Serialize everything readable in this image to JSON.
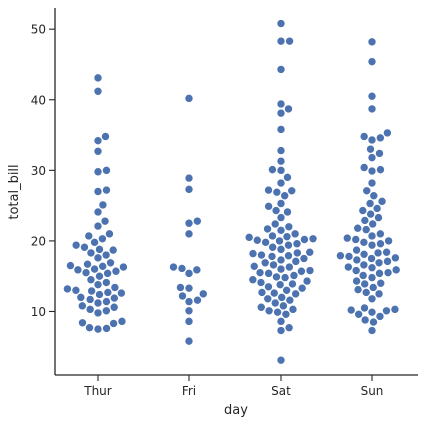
{
  "chart_data": {
    "type": "scatter",
    "subtype": "swarm",
    "title": "",
    "xlabel": "day",
    "ylabel": "total_bill",
    "categories": [
      "Thur",
      "Fri",
      "Sat",
      "Sun"
    ],
    "ylim": [
      1,
      53
    ],
    "yticks": [
      10,
      20,
      30,
      40,
      50
    ],
    "grid": false,
    "legend": "none",
    "point_color": "#4c72b0",
    "series": [
      {
        "category": "Thur",
        "values": [
          43.1,
          41.2,
          34.8,
          34.2,
          32.7,
          30.0,
          29.8,
          27.2,
          27.0,
          25.1,
          24.1,
          22.8,
          22.1,
          21.0,
          20.7,
          20.3,
          19.8,
          19.4,
          19.1,
          18.8,
          18.7,
          18.3,
          18.0,
          17.6,
          16.9,
          16.7,
          16.5,
          16.4,
          16.3,
          16.0,
          15.9,
          15.7,
          15.5,
          15.4,
          15.0,
          14.5,
          14.1,
          13.8,
          13.4,
          13.2,
          13.0,
          12.9,
          12.7,
          12.6,
          12.4,
          12.0,
          11.9,
          11.7,
          11.4,
          11.2,
          10.8,
          10.6,
          10.3,
          10.1,
          9.8,
          8.6,
          8.4,
          8.3,
          7.7,
          7.6,
          7.5
        ]
      },
      {
        "category": "Fri",
        "values": [
          40.2,
          28.9,
          27.3,
          22.8,
          22.5,
          21.0,
          16.3,
          16.1,
          15.9,
          15.4,
          13.4,
          13.3,
          12.5,
          12.2,
          11.6,
          11.4,
          10.1,
          8.6,
          5.8
        ]
      },
      {
        "category": "Sat",
        "values": [
          50.8,
          48.3,
          48.3,
          44.3,
          39.4,
          38.7,
          38.1,
          35.8,
          32.8,
          31.3,
          30.1,
          30.0,
          29.0,
          28.2,
          27.2,
          27.1,
          26.9,
          26.4,
          25.3,
          24.9,
          24.3,
          24.1,
          23.3,
          22.4,
          22.0,
          21.7,
          21.5,
          21.0,
          20.7,
          20.6,
          20.5,
          20.3,
          20.2,
          20.1,
          20.0,
          19.8,
          19.6,
          19.4,
          19.1,
          18.8,
          18.4,
          18.3,
          18.2,
          18.0,
          17.9,
          17.8,
          17.5,
          17.3,
          17.1,
          16.9,
          16.6,
          16.4,
          16.3,
          16.0,
          15.8,
          15.7,
          15.5,
          15.4,
          15.1,
          14.9,
          14.8,
          14.5,
          14.3,
          14.1,
          13.9,
          13.8,
          13.5,
          13.3,
          13.0,
          12.7,
          12.6,
          12.5,
          12.0,
          11.8,
          11.6,
          11.2,
          10.8,
          10.6,
          10.3,
          10.1,
          9.9,
          9.6,
          8.6,
          7.7,
          7.3,
          3.1
        ]
      },
      {
        "category": "Sun",
        "values": [
          48.2,
          45.4,
          40.5,
          38.7,
          35.3,
          34.8,
          34.6,
          34.3,
          33.0,
          32.4,
          31.8,
          30.4,
          30.1,
          29.9,
          28.2,
          27.1,
          26.4,
          25.6,
          25.3,
          24.6,
          24.3,
          23.8,
          23.3,
          22.9,
          22.4,
          21.8,
          21.6,
          21.0,
          20.7,
          20.4,
          20.2,
          20.0,
          19.8,
          19.6,
          19.4,
          18.7,
          18.4,
          18.3,
          18.1,
          17.9,
          17.8,
          17.6,
          17.5,
          17.3,
          17.1,
          16.9,
          16.6,
          16.3,
          16.2,
          15.9,
          15.8,
          15.5,
          15.4,
          15.1,
          14.8,
          14.3,
          14.0,
          13.9,
          13.4,
          13.1,
          12.7,
          12.5,
          11.8,
          10.5,
          10.3,
          10.2,
          10.1,
          9.9,
          9.6,
          9.3,
          8.8,
          8.5,
          7.3
        ]
      }
    ]
  }
}
